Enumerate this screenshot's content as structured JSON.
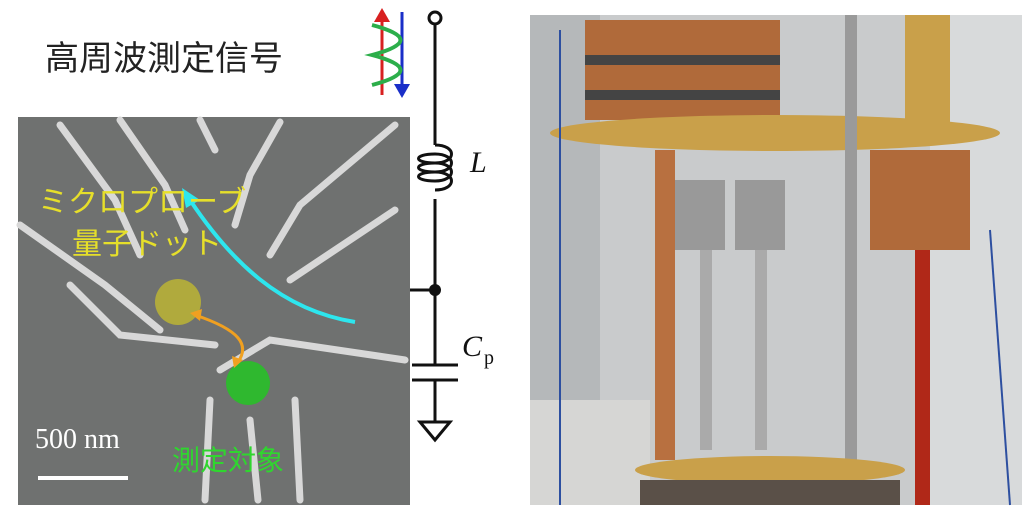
{
  "title": "高周波測定信号",
  "sem": {
    "probe_label": [
      "ミクロプローブ",
      "量子ドット"
    ],
    "target_label": "測定対象",
    "scale_bar": "500 nm"
  },
  "circuit": {
    "inductor": "L",
    "capacitor": "C",
    "capacitor_subscript": "p"
  }
}
